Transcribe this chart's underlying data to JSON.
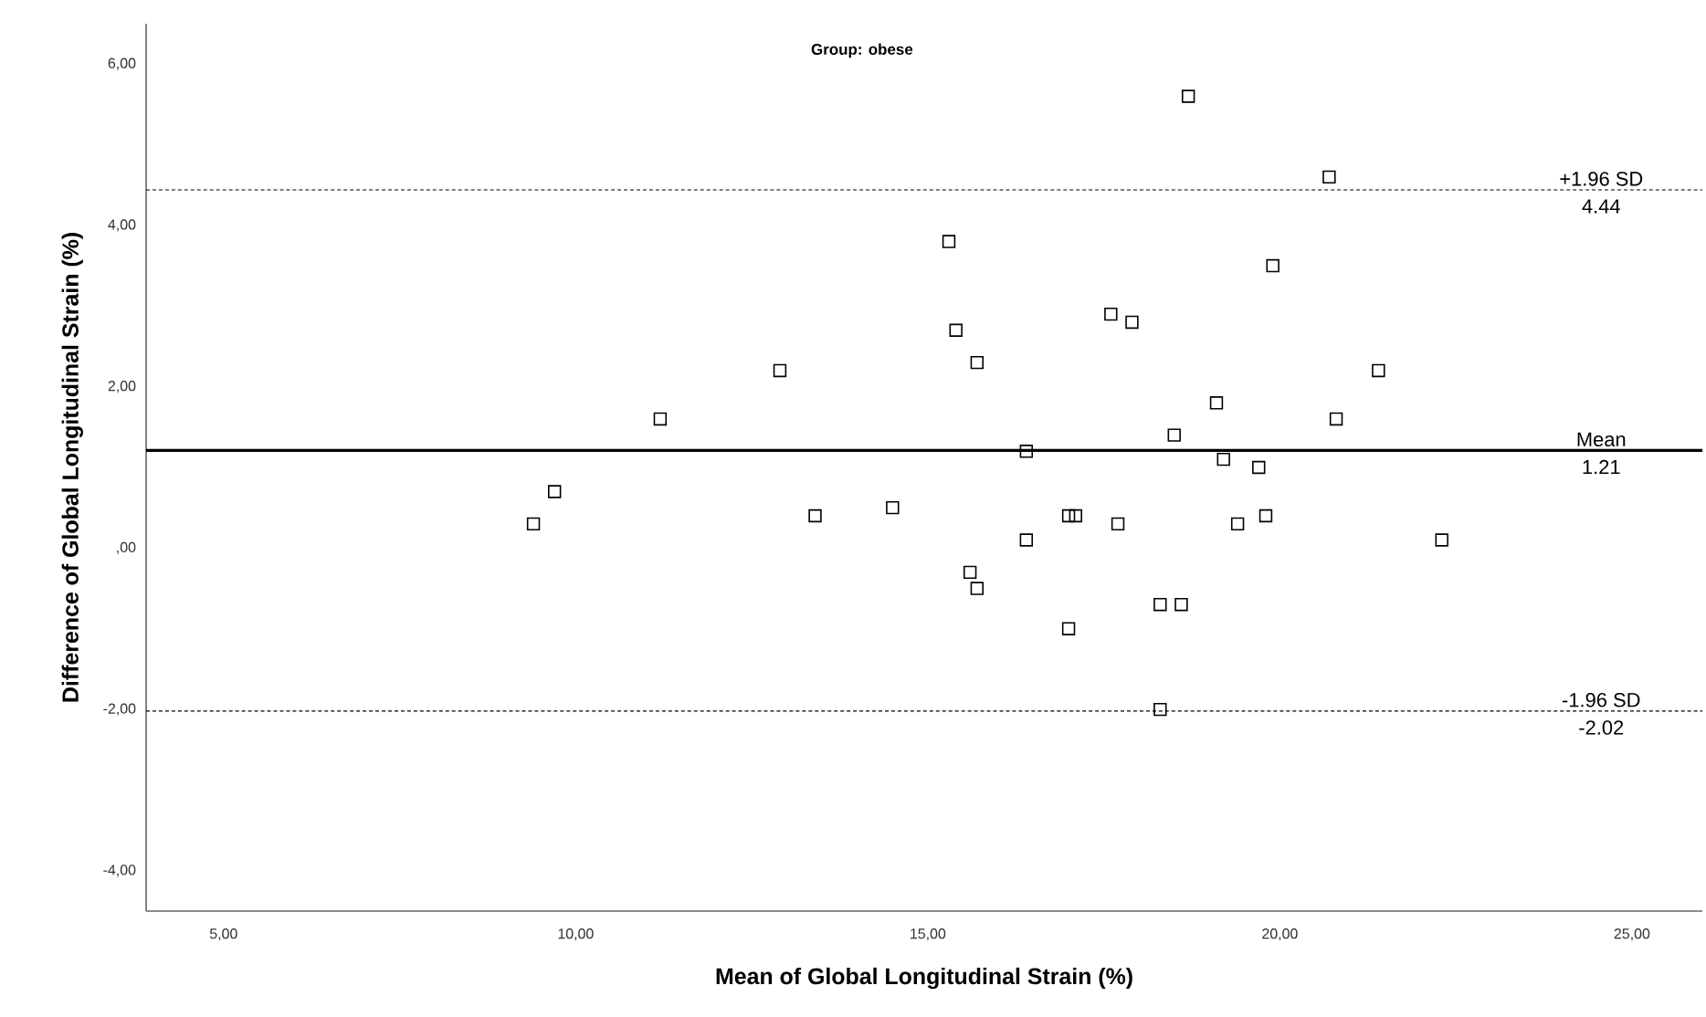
{
  "chart_data": {
    "type": "scatter",
    "title": "Group: obese",
    "xlabel": "Mean of Global Longitudinal Strain (%)",
    "ylabel": "Difference of Global Longitudinal Strain (%)",
    "x": [
      9.4,
      9.7,
      11.2,
      12.9,
      13.4,
      18.7,
      20.7,
      15.3,
      19.9,
      15.4,
      17.6,
      17.9,
      15.7,
      21.4,
      19.1,
      20.8,
      18.5,
      16.4,
      19.2,
      19.7,
      14.5,
      17.0,
      17.1,
      17.7,
      19.4,
      19.8,
      16.4,
      22.3,
      15.6,
      15.7,
      18.3,
      18.6,
      17.0,
      18.3
    ],
    "values": [
      0.3,
      0.7,
      1.6,
      2.2,
      0.4,
      5.6,
      4.6,
      3.8,
      3.5,
      2.7,
      2.9,
      2.8,
      2.3,
      2.2,
      1.8,
      1.6,
      1.4,
      1.2,
      1.1,
      1.0,
      0.5,
      0.4,
      0.4,
      0.3,
      0.3,
      0.4,
      0.1,
      0.1,
      -0.3,
      -0.5,
      -0.7,
      -0.7,
      -1.0,
      -2.0
    ],
    "color": "#000000",
    "marker": "square",
    "xlim": [
      3.9,
      26
    ],
    "ylim": [
      -4.5,
      6.5
    ],
    "xticks": [
      {
        "value": 5,
        "label": "5,00"
      },
      {
        "value": 10,
        "label": "10,00"
      },
      {
        "value": 15,
        "label": "15,00"
      },
      {
        "value": 20,
        "label": "20,00"
      },
      {
        "value": 25,
        "label": "25,00"
      }
    ],
    "yticks": [
      {
        "value": -4,
        "label": "-4,00"
      },
      {
        "value": -2,
        "label": "-2,00"
      },
      {
        "value": 0,
        "label": ",00"
      },
      {
        "value": 2,
        "label": "2,00"
      },
      {
        "value": 4,
        "label": "4,00"
      },
      {
        "value": 6,
        "label": "6,00"
      }
    ],
    "ref_lines": [
      {
        "axis": "y",
        "value": 4.44,
        "label": "+1.96 SD",
        "line_style": "dashed"
      },
      {
        "axis": "y",
        "value": 1.21,
        "label": "Mean",
        "line_style": "solid"
      },
      {
        "axis": "y",
        "value": -2.02,
        "label": "-1.96 SD",
        "line_style": "dashed"
      }
    ],
    "annotations": [
      {
        "text": "4.44",
        "y": 4.44
      },
      {
        "text": "1.21",
        "y": 1.21
      },
      {
        "text": "-2.02",
        "y": -2.02
      }
    ]
  }
}
